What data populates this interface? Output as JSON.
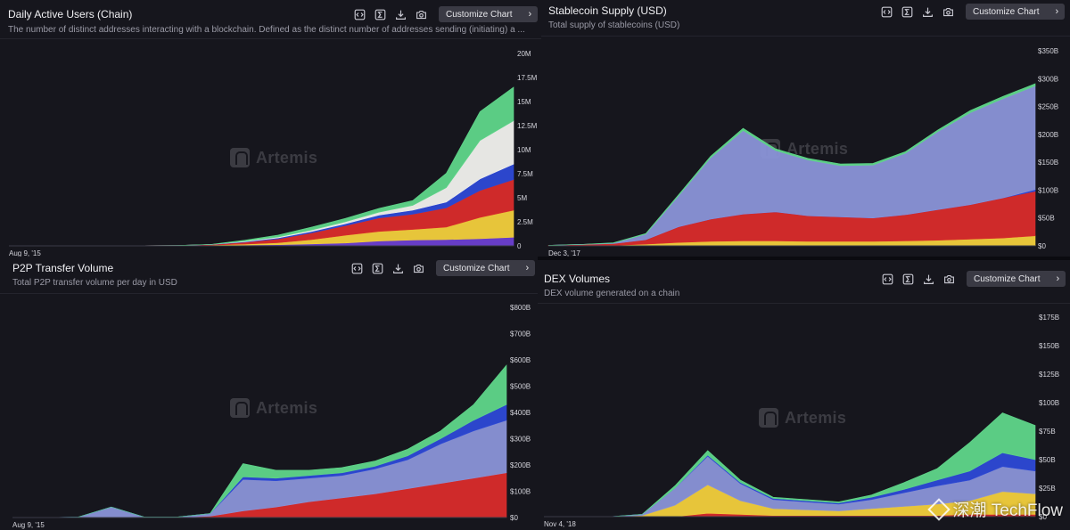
{
  "source_watermark": "深潮 TechFlow",
  "watermark": "Artemis",
  "colors": {
    "green": "#5fd68a",
    "white": "#f1f1ee",
    "blue": "#2d49d6",
    "red": "#d92b2b",
    "yellow": "#f2cf3c",
    "purple": "#6b3fd1",
    "lavender": "#8a93d8",
    "background": "#16161d"
  },
  "chart_data": [
    {
      "title": "Daily Active Users (Chain)",
      "description": "The number of distinct addresses interacting with a blockchain. Defined as the distinct number of addresses sending (initiating) a ...",
      "button_label": "Customize Chart",
      "type": "area",
      "stacked": true,
      "x_start_label": "Aug 9, '15",
      "y_ticks": [
        "0",
        "2.5M",
        "5M",
        "7.5M",
        "10M",
        "12.5M",
        "15M",
        "17.5M",
        "20M"
      ],
      "ylim": [
        0,
        20000000
      ],
      "series": [
        {
          "name": "purple",
          "color": "#6b3fd1",
          "values": [
            0,
            0,
            0.01,
            0.02,
            0.02,
            0.03,
            0.05,
            0.08,
            0.12,
            0.2,
            0.3,
            0.5,
            0.6,
            0.65,
            0.75,
            0.9
          ]
        },
        {
          "name": "yellow",
          "color": "#f2cf3c",
          "values": [
            0,
            0,
            0,
            0,
            0,
            0.01,
            0.03,
            0.1,
            0.2,
            0.45,
            0.8,
            1.0,
            1.1,
            1.3,
            2.2,
            2.8
          ]
        },
        {
          "name": "red",
          "color": "#d92b2b",
          "values": [
            0,
            0,
            0,
            0,
            0,
            0.01,
            0.05,
            0.2,
            0.4,
            0.7,
            1.0,
            1.4,
            1.6,
            2.0,
            2.8,
            3.2
          ]
        },
        {
          "name": "blue",
          "color": "#2d49d6",
          "values": [
            0,
            0,
            0,
            0,
            0,
            0,
            0.01,
            0.05,
            0.1,
            0.15,
            0.2,
            0.3,
            0.4,
            0.6,
            1.2,
            1.6
          ]
        },
        {
          "name": "white",
          "color": "#f1f1ee",
          "values": [
            0,
            0,
            0,
            0,
            0,
            0,
            0,
            0.05,
            0.1,
            0.15,
            0.2,
            0.3,
            0.5,
            1.5,
            4.0,
            4.5
          ]
        },
        {
          "name": "green",
          "color": "#5fd68a",
          "values": [
            0,
            0,
            0,
            0,
            0,
            0,
            0.01,
            0.1,
            0.2,
            0.3,
            0.35,
            0.4,
            0.5,
            1.5,
            3.0,
            3.5
          ]
        }
      ]
    },
    {
      "title": "Stablecoin Supply (USD)",
      "description": "Total supply of stablecoins (USD)",
      "button_label": "Customize Chart",
      "type": "area",
      "stacked": true,
      "x_start_label": "Dec 3, '17",
      "y_ticks": [
        "$0",
        "$50B",
        "$100B",
        "$150B",
        "$200B",
        "$250B",
        "$300B",
        "$350B"
      ],
      "ylim": [
        0,
        350
      ],
      "series": [
        {
          "name": "yellow",
          "color": "#f2cf3c",
          "values": [
            0,
            0.5,
            1,
            3,
            6,
            8,
            9,
            9,
            8,
            8,
            8,
            9,
            10,
            12,
            14,
            18
          ]
        },
        {
          "name": "red",
          "color": "#d92b2b",
          "values": [
            1,
            2,
            3,
            8,
            28,
            40,
            48,
            52,
            46,
            44,
            42,
            47,
            55,
            62,
            72,
            80
          ]
        },
        {
          "name": "blue",
          "color": "#2d49d6",
          "values": [
            0,
            0,
            0,
            0,
            0,
            0,
            0,
            0,
            0,
            0,
            0,
            0,
            0,
            0,
            0,
            3
          ]
        },
        {
          "name": "lavender",
          "color": "#8a93d8",
          "values": [
            0,
            0,
            1,
            10,
            55,
            110,
            150,
            110,
            100,
            92,
            95,
            110,
            140,
            165,
            178,
            186
          ]
        },
        {
          "name": "green",
          "color": "#5fd68a",
          "values": [
            0,
            0,
            0.5,
            1,
            2,
            3,
            4,
            3,
            3,
            3,
            3,
            3,
            3,
            4,
            4,
            4
          ]
        }
      ]
    },
    {
      "title": "P2P Transfer Volume",
      "description": "Total P2P transfer volume per day in USD",
      "button_label": "Customize Chart",
      "type": "area",
      "stacked": true,
      "x_start_label": "Aug 9, '15",
      "y_ticks": [
        "$0",
        "$100B",
        "$200B",
        "$300B",
        "$400B",
        "$500B",
        "$600B",
        "$700B",
        "$800B"
      ],
      "ylim": [
        0,
        800
      ],
      "series": [
        {
          "name": "red",
          "color": "#d92b2b",
          "values": [
            0,
            0,
            0,
            0,
            0,
            0,
            5,
            25,
            40,
            60,
            75,
            90,
            110,
            130,
            150,
            170
          ]
        },
        {
          "name": "lavender",
          "color": "#8a93d8",
          "values": [
            0,
            0,
            2,
            40,
            2,
            2,
            10,
            120,
            100,
            90,
            85,
            95,
            110,
            150,
            180,
            200
          ]
        },
        {
          "name": "blue",
          "color": "#2d49d6",
          "values": [
            0,
            0,
            0,
            0,
            0,
            0,
            0,
            10,
            10,
            10,
            10,
            10,
            15,
            20,
            40,
            60
          ]
        },
        {
          "name": "green",
          "color": "#5fd68a",
          "values": [
            0,
            0,
            0,
            0,
            0,
            0,
            0,
            50,
            30,
            20,
            20,
            20,
            25,
            30,
            60,
            150
          ]
        }
      ]
    },
    {
      "title": "DEX Volumes",
      "description": "DEX volume generated on a chain",
      "button_label": "Customize Chart",
      "type": "area",
      "stacked": true,
      "x_start_label": "Nov 4, '18",
      "y_ticks": [
        "$0",
        "$25B",
        "$50B",
        "$75B",
        "$100B",
        "$125B",
        "$150B",
        "$175B"
      ],
      "ylim": [
        0,
        175
      ],
      "series": [
        {
          "name": "red",
          "color": "#d92b2b",
          "values": [
            0,
            0,
            0,
            0,
            0,
            3,
            2,
            1,
            1,
            1,
            1,
            1,
            1,
            2,
            2,
            2
          ]
        },
        {
          "name": "yellow",
          "color": "#f2cf3c",
          "values": [
            0,
            0,
            0,
            1,
            10,
            25,
            12,
            6,
            5,
            4,
            6,
            8,
            10,
            12,
            20,
            18
          ]
        },
        {
          "name": "lavender",
          "color": "#8a93d8",
          "values": [
            0,
            0,
            0,
            1,
            15,
            25,
            15,
            8,
            7,
            6,
            8,
            12,
            16,
            18,
            22,
            20
          ]
        },
        {
          "name": "blue",
          "color": "#2d49d6",
          "values": [
            0,
            0,
            0,
            0,
            0,
            1,
            1,
            1,
            1,
            1,
            2,
            3,
            5,
            8,
            12,
            10
          ]
        },
        {
          "name": "green",
          "color": "#5fd68a",
          "values": [
            0,
            0,
            0,
            0,
            2,
            4,
            2,
            1,
            1,
            1,
            2,
            6,
            10,
            25,
            35,
            30
          ]
        }
      ]
    }
  ]
}
